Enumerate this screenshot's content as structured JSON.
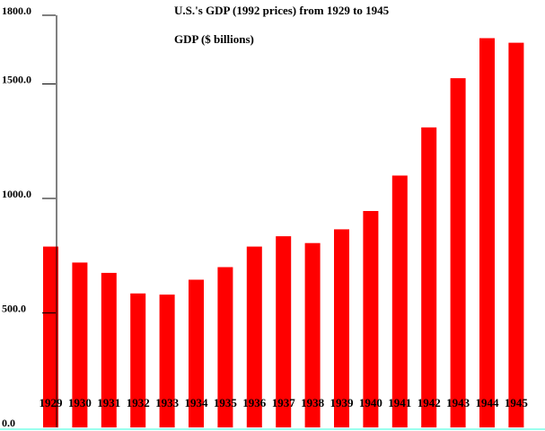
{
  "chart_data": {
    "type": "bar",
    "title": "U.S.'s GDP (1992 prices) from 1929 to 1945",
    "subtitle": "GDP ($ billions)",
    "xlabel": "",
    "ylabel": "GDP ($ billions)",
    "ylim": [
      0,
      1800
    ],
    "yticks": [
      "0.0",
      "500.0",
      "1000.0",
      "1500.0",
      "1800.0"
    ],
    "ytick_values": [
      0,
      500,
      1000,
      1500,
      1800
    ],
    "categories": [
      "1929",
      "1930",
      "1931",
      "1932",
      "1933",
      "1934",
      "1935",
      "1936",
      "1937",
      "1938",
      "1939",
      "1940",
      "1941",
      "1942",
      "1943",
      "1944",
      "1945"
    ],
    "values": [
      790,
      720,
      675,
      585,
      580,
      645,
      700,
      790,
      835,
      805,
      865,
      945,
      1100,
      1310,
      1525,
      1700,
      1680
    ],
    "grid": false,
    "legend": "none"
  },
  "colors": {
    "bar": "#ff0000",
    "axis": "#000000",
    "baseline": "#99ffee",
    "text": "#000000"
  }
}
